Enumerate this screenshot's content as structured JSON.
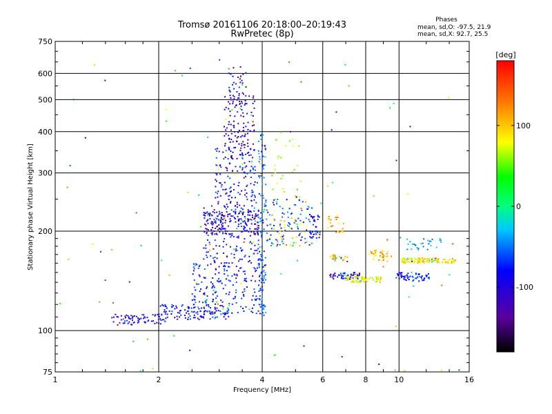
{
  "chart_data": {
    "type": "scatter",
    "title": "Tromsø 20161106 20:18:00–20:19:43",
    "subtitle": "RwPretec (8p)",
    "xlabel": "Frequency [MHz]",
    "ylabel": "Stationary phase Virtual Height [km]",
    "xscale": "log",
    "yscale": "log",
    "xlim": [
      1,
      16
    ],
    "ylim": [
      75,
      750
    ],
    "x_ticks": [
      1,
      2,
      4,
      6,
      8,
      10,
      16
    ],
    "y_ticks": [
      75,
      100,
      200,
      300,
      400,
      500,
      600,
      750
    ],
    "x_tick_labels": [
      "1",
      "2",
      "4",
      "6",
      "8",
      "10",
      "16"
    ],
    "y_tick_labels": [
      "75",
      "100",
      "200",
      "300",
      "400",
      "500",
      "600",
      "750"
    ],
    "grid": true,
    "phases": {
      "header": "Phases",
      "line_o": "mean, sd,O: -97.5, 21.9",
      "line_x": "mean, sd,X:  92.7, 25.5"
    },
    "colorbar": {
      "label": "[deg]",
      "range": [
        -180,
        180
      ],
      "ticks": [
        100,
        0,
        -100
      ],
      "tick_labels": [
        "100",
        "0",
        "-100"
      ]
    },
    "clusters": [
      {
        "f": [
          1.45,
          2.1
        ],
        "h": [
          104,
          112
        ],
        "phase": -115,
        "n": 70
      },
      {
        "f": [
          2.0,
          3.2
        ],
        "h": [
          108,
          120
        ],
        "phase": -110,
        "n": 130
      },
      {
        "f": [
          2.5,
          4.05
        ],
        "h": [
          112,
          160
        ],
        "phase": -105,
        "n": 200
      },
      {
        "f": [
          2.7,
          4.0
        ],
        "h": [
          160,
          240
        ],
        "phase": -110,
        "n": 170
      },
      {
        "f": [
          2.7,
          3.9
        ],
        "h": [
          195,
          230
        ],
        "phase": -125,
        "n": 150
      },
      {
        "f": [
          2.9,
          3.9
        ],
        "h": [
          240,
          360
        ],
        "phase": -110,
        "n": 130
      },
      {
        "f": [
          3.1,
          3.8
        ],
        "h": [
          330,
          520
        ],
        "phase": -130,
        "n": 130
      },
      {
        "f": [
          3.2,
          3.6
        ],
        "h": [
          480,
          630
        ],
        "phase": -120,
        "n": 35
      },
      {
        "f": [
          3.9,
          4.1
        ],
        "h": [
          110,
          400
        ],
        "phase": -80,
        "n": 110
      },
      {
        "f": [
          4.1,
          5.6
        ],
        "h": [
          180,
          250
        ],
        "phase": -90,
        "n": 90
      },
      {
        "f": [
          4.2,
          5.4
        ],
        "h": [
          180,
          220
        ],
        "phase": 105,
        "n": 35
      },
      {
        "f": [
          4.2,
          5.2
        ],
        "h": [
          240,
          400
        ],
        "phase": 80,
        "n": 30
      },
      {
        "f": [
          5.5,
          5.9
        ],
        "h": [
          190,
          225
        ],
        "phase": -110,
        "n": 40
      },
      {
        "f": [
          6.2,
          6.9
        ],
        "h": [
          198,
          225
        ],
        "phase": 125,
        "n": 25
      },
      {
        "f": [
          6.3,
          7.1
        ],
        "h": [
          160,
          170
        ],
        "phase": 120,
        "n": 25
      },
      {
        "f": [
          6.3,
          7.7
        ],
        "h": [
          143,
          150
        ],
        "phase": -110,
        "n": 60
      },
      {
        "f": [
          7.0,
          8.9
        ],
        "h": [
          140,
          146
        ],
        "phase": 100,
        "n": 70
      },
      {
        "f": [
          8.2,
          9.6
        ],
        "h": [
          162,
          175
        ],
        "phase": 120,
        "n": 40
      },
      {
        "f": [
          9.8,
          12.3
        ],
        "h": [
          141,
          150
        ],
        "phase": -100,
        "n": 60
      },
      {
        "f": [
          10.2,
          14.6
        ],
        "h": [
          160,
          166
        ],
        "phase": 105,
        "n": 110
      },
      {
        "f": [
          10.5,
          13.5
        ],
        "h": [
          175,
          190
        ],
        "phase": -60,
        "n": 30
      },
      {
        "f": [
          1.0,
          16.0
        ],
        "h": [
          75,
          700
        ],
        "phase": 0,
        "n": 90
      }
    ]
  }
}
